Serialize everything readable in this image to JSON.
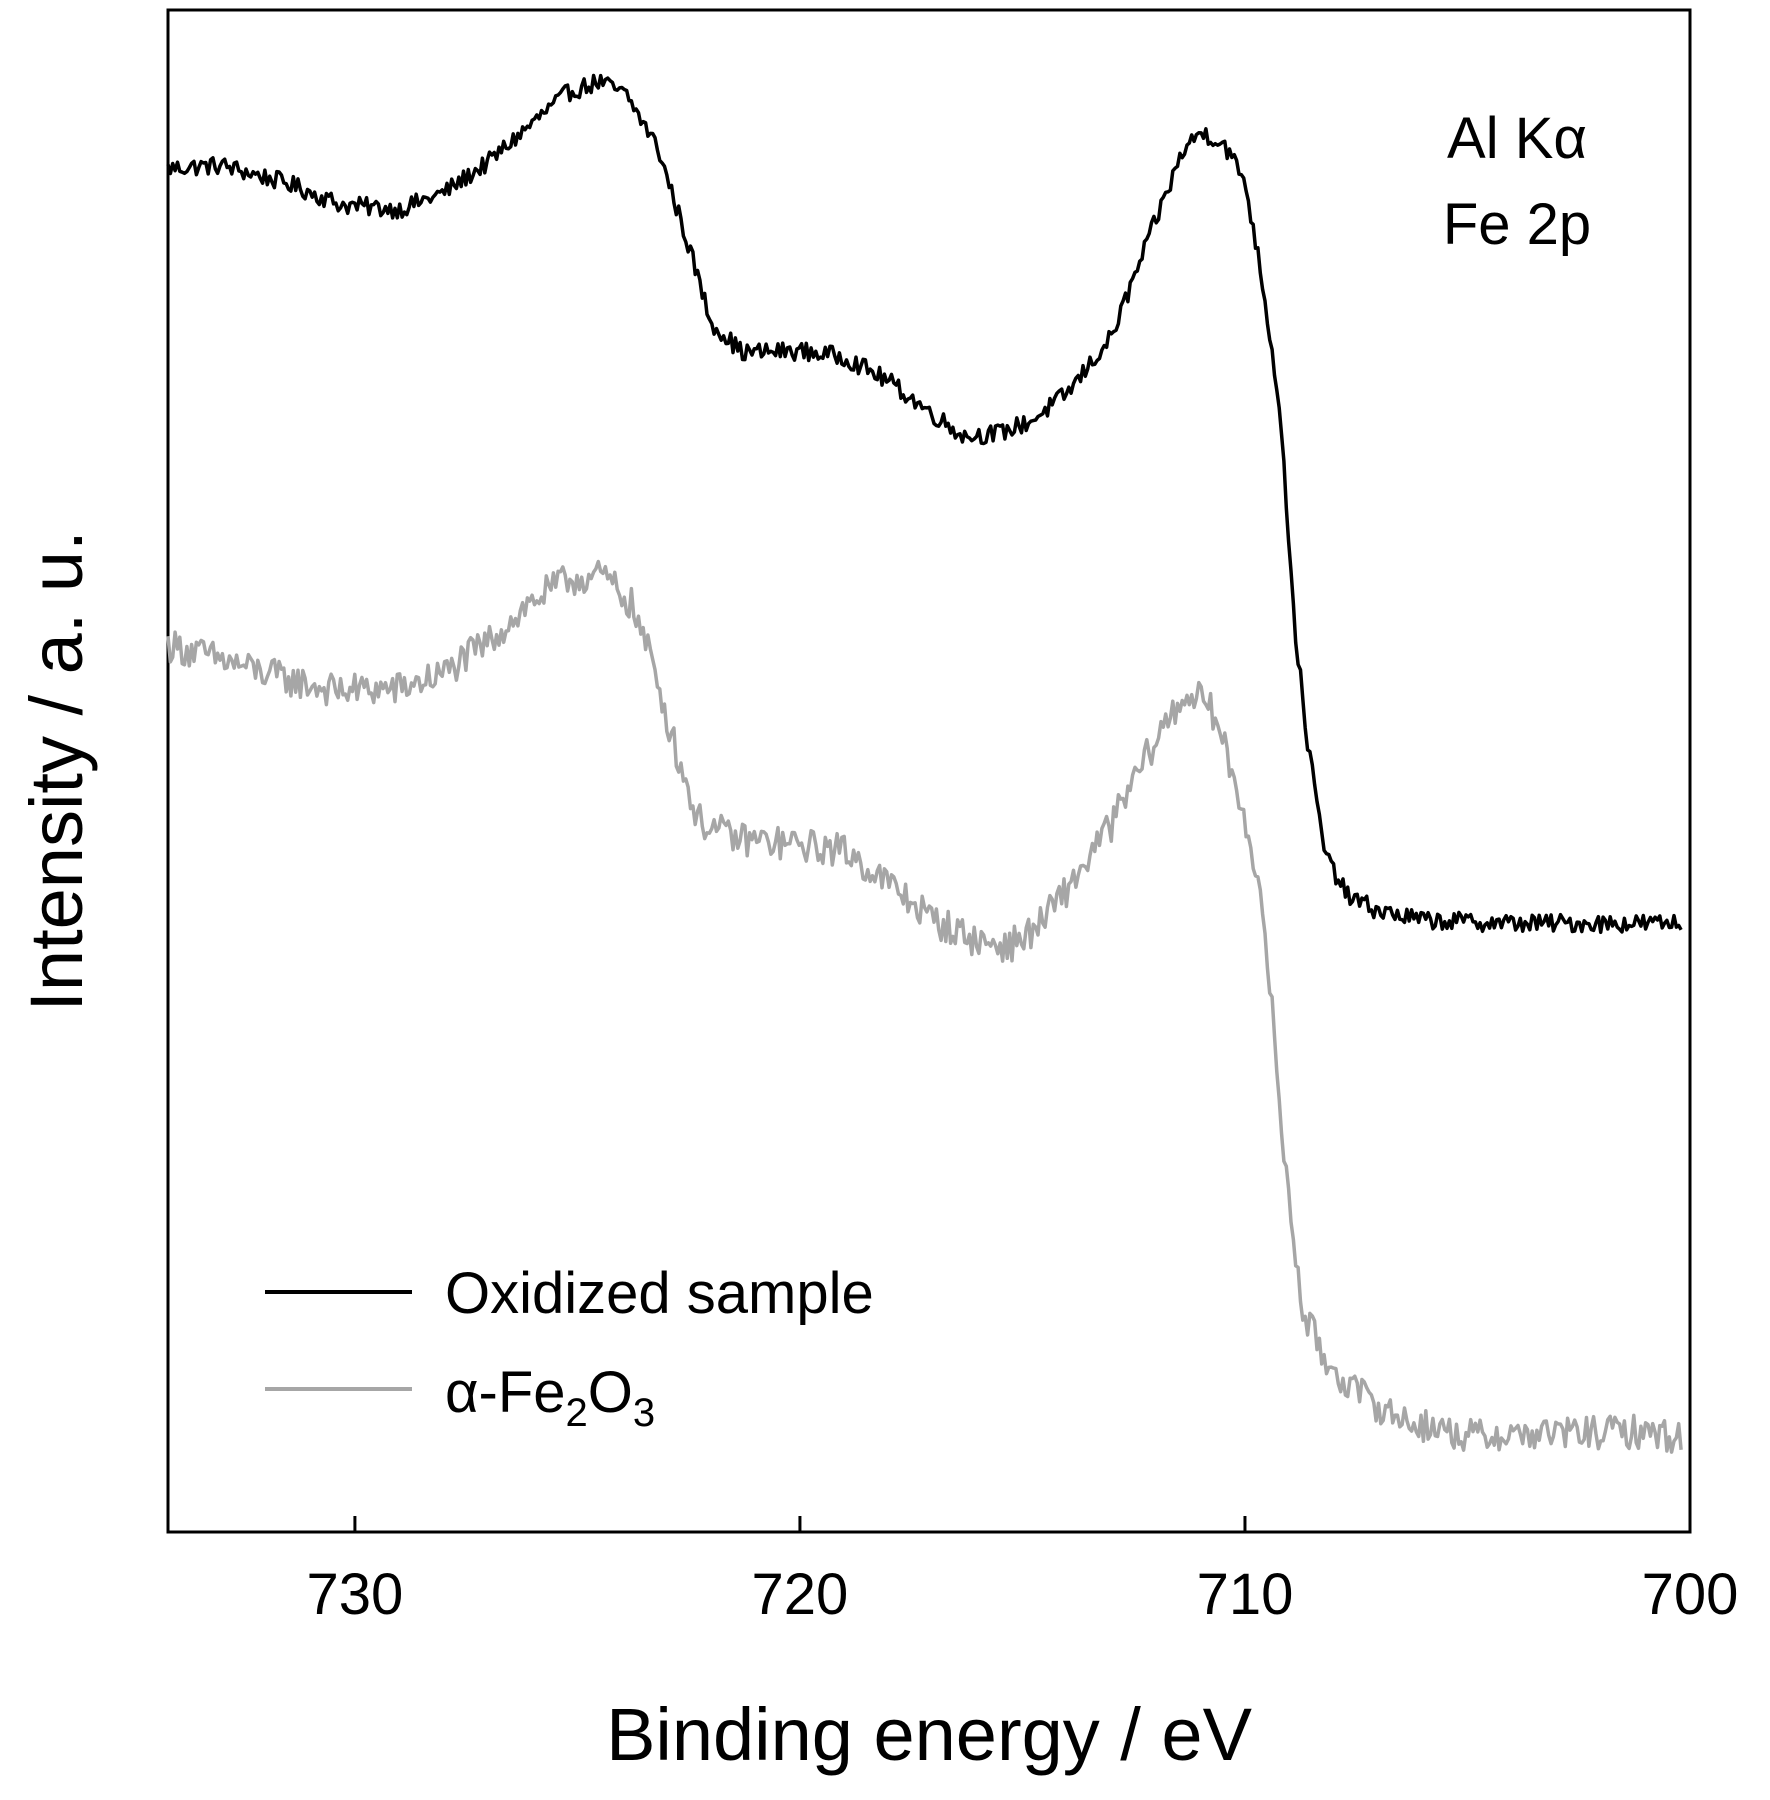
{
  "chart_data": {
    "type": "line",
    "title": "",
    "xlabel": "Binding energy / eV",
    "ylabel": "Intensity / a. u.",
    "xlim": [
      734.2,
      700
    ],
    "x_reversed": true,
    "y_ticks_shown": false,
    "grid": false,
    "x_ticks": [
      {
        "value": 730,
        "label": "730"
      },
      {
        "value": 720,
        "label": "720"
      },
      {
        "value": 710,
        "label": "710"
      },
      {
        "value": 700,
        "label": "700"
      }
    ],
    "annotations": [
      "Al Kα",
      "Fe 2p"
    ],
    "legend": {
      "placement": "bottom-left",
      "entries": [
        {
          "label": "Oxidized sample",
          "color": "#000000"
        },
        {
          "label_prefix": "α-Fe",
          "sub1": "2",
          "mid": "O",
          "sub2": "3",
          "color": "#a6a6a6"
        }
      ]
    },
    "y_units": "arbitrary (normalized, 0 = bottom axis, 100 = top axis)",
    "series": [
      {
        "name": "Oxidized sample",
        "color": "#000000",
        "noise": 0.6,
        "points": [
          [
            734.2,
            89.6
          ],
          [
            733.0,
            89.8
          ],
          [
            731.5,
            88.6
          ],
          [
            730.3,
            87.2
          ],
          [
            729.0,
            86.9
          ],
          [
            728.0,
            88.0
          ],
          [
            727.0,
            90.0
          ],
          [
            726.0,
            92.6
          ],
          [
            725.2,
            94.6
          ],
          [
            724.5,
            95.3
          ],
          [
            723.9,
            94.4
          ],
          [
            723.2,
            91.0
          ],
          [
            722.5,
            84.5
          ],
          [
            722.0,
            79.5
          ],
          [
            721.3,
            77.5
          ],
          [
            720.0,
            77.6
          ],
          [
            719.0,
            77.2
          ],
          [
            718.0,
            75.6
          ],
          [
            717.0,
            73.4
          ],
          [
            716.3,
            72.0
          ],
          [
            715.5,
            72.2
          ],
          [
            714.8,
            73.0
          ],
          [
            714.0,
            74.8
          ],
          [
            713.0,
            78.5
          ],
          [
            712.0,
            86.2
          ],
          [
            711.4,
            90.7
          ],
          [
            711.0,
            92.0
          ],
          [
            710.5,
            91.3
          ],
          [
            710.0,
            88.8
          ],
          [
            709.6,
            82.0
          ],
          [
            709.2,
            73.5
          ],
          [
            708.9,
            60.0
          ],
          [
            708.6,
            52.0
          ],
          [
            708.2,
            44.5
          ],
          [
            707.7,
            41.8
          ],
          [
            707.0,
            40.8
          ],
          [
            706.0,
            40.2
          ],
          [
            704.0,
            40.0
          ],
          [
            702.0,
            40.0
          ],
          [
            700.2,
            40.0
          ]
        ]
      },
      {
        "name": "α-Fe2O3",
        "color": "#a6a6a6",
        "noise": 1.1,
        "points": [
          [
            734.2,
            58.3
          ],
          [
            733.0,
            57.3
          ],
          [
            731.5,
            56.0
          ],
          [
            730.5,
            55.3
          ],
          [
            729.0,
            55.4
          ],
          [
            728.0,
            56.4
          ],
          [
            727.0,
            58.5
          ],
          [
            726.0,
            61.2
          ],
          [
            725.2,
            62.6
          ],
          [
            724.4,
            62.8
          ],
          [
            723.8,
            61.0
          ],
          [
            723.3,
            57.0
          ],
          [
            722.8,
            51.5
          ],
          [
            722.3,
            46.8
          ],
          [
            721.5,
            45.6
          ],
          [
            720.3,
            45.2
          ],
          [
            719.0,
            44.8
          ],
          [
            718.0,
            42.6
          ],
          [
            717.0,
            40.2
          ],
          [
            716.0,
            38.8
          ],
          [
            715.3,
            38.5
          ],
          [
            714.7,
            39.6
          ],
          [
            714.0,
            42.2
          ],
          [
            713.0,
            46.5
          ],
          [
            712.2,
            51.0
          ],
          [
            711.6,
            54.0
          ],
          [
            711.2,
            55.2
          ],
          [
            710.7,
            53.8
          ],
          [
            710.3,
            50.0
          ],
          [
            709.9,
            46.0
          ],
          [
            709.5,
            38.0
          ],
          [
            709.1,
            24.0
          ],
          [
            708.7,
            14.5
          ],
          [
            708.2,
            11.3
          ],
          [
            707.5,
            9.2
          ],
          [
            706.5,
            7.4
          ],
          [
            705.0,
            6.3
          ],
          [
            703.0,
            6.5
          ],
          [
            701.0,
            6.6
          ],
          [
            700.2,
            6.2
          ]
        ]
      }
    ]
  }
}
